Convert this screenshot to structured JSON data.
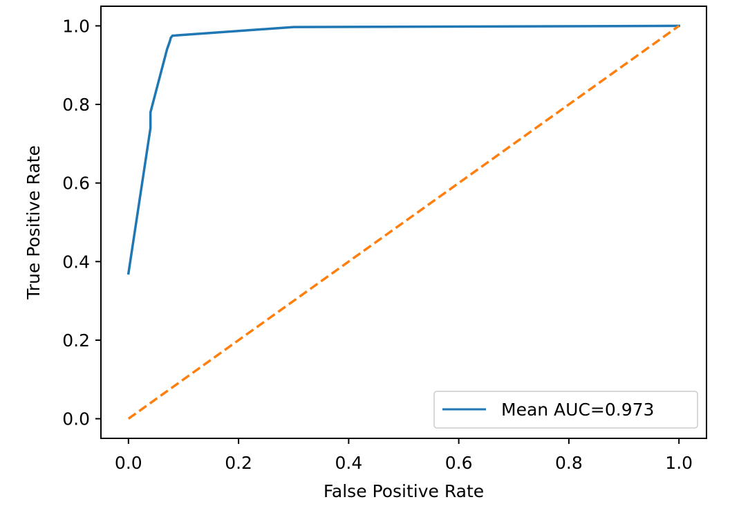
{
  "chart_data": {
    "type": "line",
    "title": "",
    "xlabel": "False Positive Rate",
    "ylabel": "True Positive Rate",
    "xlim": [
      -0.05,
      1.05
    ],
    "ylim": [
      -0.05,
      1.05
    ],
    "xticks": [
      0.0,
      0.2,
      0.4,
      0.6,
      0.8,
      1.0
    ],
    "xtick_labels": [
      "0.0",
      "0.2",
      "0.4",
      "0.6",
      "0.8",
      "1.0"
    ],
    "yticks": [
      0.0,
      0.2,
      0.4,
      0.6,
      0.8,
      1.0
    ],
    "ytick_labels": [
      "0.0",
      "0.2",
      "0.4",
      "0.6",
      "0.8",
      "1.0"
    ],
    "grid": false,
    "legend_position": "lower-right",
    "series": [
      {
        "name": "Mean AUC=0.973",
        "color": "#1f77b4",
        "style": "solid",
        "in_legend": true,
        "x": [
          0.0,
          0.04,
          0.04,
          0.04,
          0.07,
          0.075,
          0.077,
          0.08,
          0.3,
          1.0
        ],
        "y": [
          0.37,
          0.74,
          0.77,
          0.78,
          0.94,
          0.96,
          0.97,
          0.975,
          0.997,
          1.0
        ]
      },
      {
        "name": "",
        "color": "#ff7f0e",
        "style": "dashed",
        "in_legend": false,
        "x": [
          0.0,
          1.0
        ],
        "y": [
          0.0,
          1.0
        ]
      }
    ]
  }
}
